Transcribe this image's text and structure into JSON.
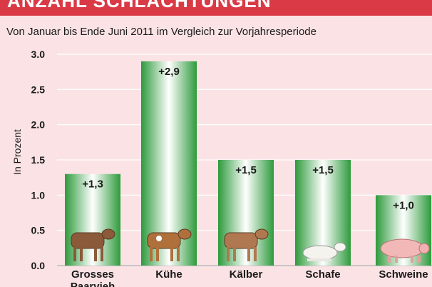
{
  "header": {
    "title": "ANZAHL SCHLACHTUNGEN",
    "subtitle": "Von Januar bis Ende Juni 2011 im Vergleich zur Vorjahresperiode"
  },
  "colors": {
    "title_bar": "#d93a46",
    "background": "#fbe3e5",
    "bar_edge": "#2e9a3c",
    "bar_center": "#ffffff"
  },
  "chart_data": {
    "type": "bar",
    "title": "",
    "xlabel": "",
    "ylabel": "In Prozent",
    "ylim": [
      0,
      3.0
    ],
    "yticks": [
      "0.0",
      "0.5",
      "1.0",
      "1.5",
      "2.0",
      "2.5",
      "3.0"
    ],
    "grid": true,
    "categories": [
      "Grosses Paarvieh",
      "Kühe",
      "Kälber",
      "Schafe",
      "Schweine"
    ],
    "values": [
      1.3,
      2.9,
      1.5,
      1.5,
      1.0
    ],
    "value_labels": [
      "+1,3",
      "+2,9",
      "+1,5",
      "+1,5",
      "+1,0"
    ],
    "icons": [
      "cow-icon",
      "cow-icon",
      "calf-icon",
      "sheep-icon",
      "pig-icon"
    ]
  }
}
